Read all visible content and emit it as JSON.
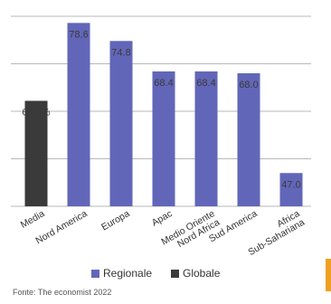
{
  "chart_data": {
    "type": "bar",
    "categories": [
      "Media",
      "Nord America",
      "Europa",
      "Apac",
      "Medio Oriente Nord Africa",
      "Sud America",
      "Africa Sub-Sahariana"
    ],
    "category_label_lines": [
      [
        "Media"
      ],
      [
        "Nord America"
      ],
      [
        "Europa"
      ],
      [
        "Apac"
      ],
      [
        "Medio Oriente",
        "Nord Africa"
      ],
      [
        "Sud America"
      ],
      [
        "Africa",
        "Sub-Sahariana"
      ]
    ],
    "values": [
      62.2,
      78.6,
      74.8,
      68.4,
      68.4,
      68.0,
      47.0
    ],
    "data_labels": [
      "62,2%",
      "78.6",
      "74.8",
      "68.4",
      "68.4",
      "68.0",
      "47.0"
    ],
    "bar_series": [
      "Globale",
      "Regionale",
      "Regionale",
      "Regionale",
      "Regionale",
      "Regionale",
      "Regionale"
    ],
    "series": [
      {
        "name": "Regionale",
        "color": "#6266b8"
      },
      {
        "name": "Globale",
        "color": "#3a3a3a"
      }
    ],
    "title": "",
    "xlabel": "",
    "ylabel": "",
    "ylim": [
      40,
      80
    ],
    "grid": true,
    "legend_placement": "bottom-center",
    "source": "Fonte: The economist 2022"
  },
  "colors": {
    "regionale": "#6266b8",
    "globale": "#3a3a3a",
    "grid": "#b8b8b8",
    "accent": "#f0a020"
  }
}
